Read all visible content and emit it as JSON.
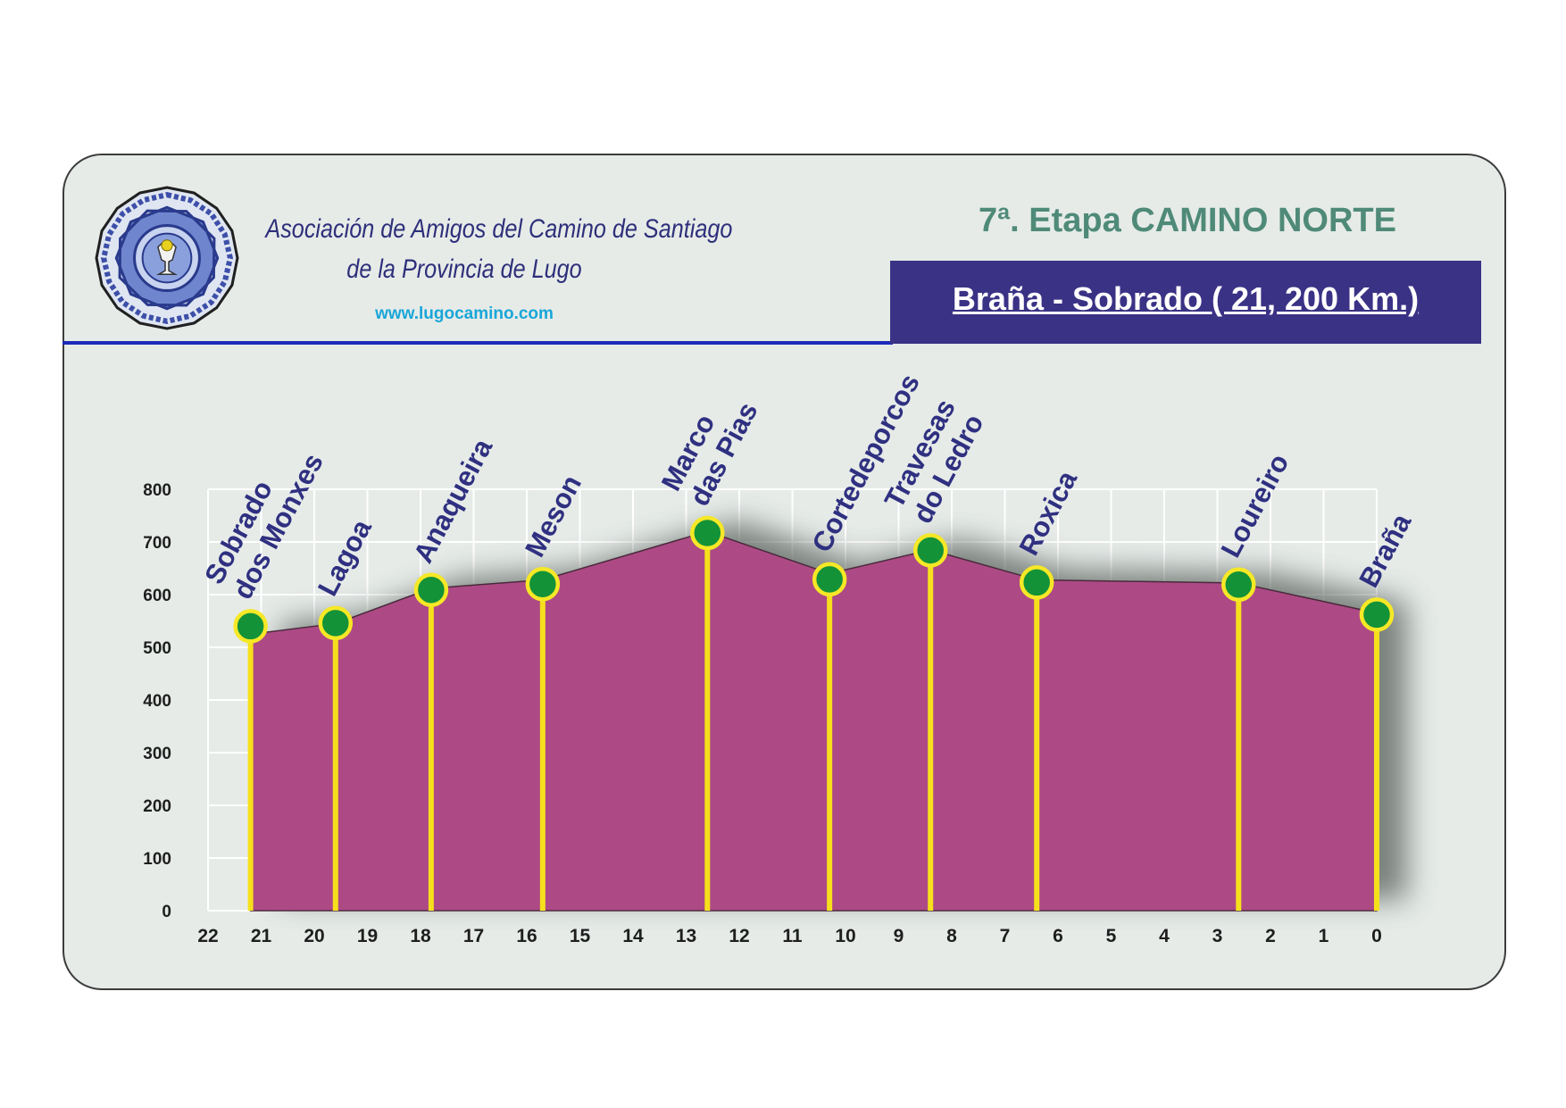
{
  "header": {
    "organization_line1": "Asociación de Amigos del Camino de Santiago",
    "organization_line2": "de la Provincia de Lugo",
    "website": "www.lugocamino.com",
    "stage_title": "7ª. Etapa CAMINO NORTE",
    "route": " Braña - Sobrado ( 21, 200 Km.)"
  },
  "colors": {
    "fill": "#ad4a85",
    "marker_fill": "#139238",
    "marker_ring": "#f6e826",
    "pole": "#f6e01c",
    "label": "#2f3080",
    "header_band": "#3a3285",
    "rule": "#1b2bb8",
    "stage_title": "#4f8a78",
    "website": "#1aa6d8"
  },
  "chart_data": {
    "type": "area",
    "x_ticks": [
      "22",
      "21",
      "20",
      "19",
      "18",
      "17",
      "16",
      "15",
      "14",
      "13",
      "12",
      "11",
      "10",
      "9",
      "8",
      "7",
      "6",
      "5",
      "4",
      "3",
      "2",
      "1",
      "0"
    ],
    "x_reversed": true,
    "xlim": [
      22,
      0
    ],
    "y_ticks": [
      "0",
      "100",
      "200",
      "300",
      "400",
      "500",
      "600",
      "700",
      "800"
    ],
    "ylim": [
      0,
      800
    ],
    "grid": true,
    "profile": [
      {
        "x": 21.2,
        "y": 525
      },
      {
        "x": 19.6,
        "y": 545
      },
      {
        "x": 17.8,
        "y": 612
      },
      {
        "x": 15.7,
        "y": 628
      },
      {
        "x": 12.6,
        "y": 720
      },
      {
        "x": 10.3,
        "y": 640
      },
      {
        "x": 8.4,
        "y": 685
      },
      {
        "x": 6.4,
        "y": 628
      },
      {
        "x": 2.6,
        "y": 622
      },
      {
        "x": 0,
        "y": 565
      }
    ],
    "waypoints": [
      {
        "label_lines": [
          "Sobrado",
          "dos Monxes"
        ],
        "x": 21.2,
        "y": 540
      },
      {
        "label_lines": [
          "Lagoa"
        ],
        "x": 19.6,
        "y": 546
      },
      {
        "label_lines": [
          "Anaqueira"
        ],
        "x": 17.8,
        "y": 609
      },
      {
        "label_lines": [
          "Meson"
        ],
        "x": 15.7,
        "y": 620
      },
      {
        "label_lines": [
          "Marco",
          "das Pias"
        ],
        "x": 12.6,
        "y": 717
      },
      {
        "label_lines": [
          "Cortedeporcos"
        ],
        "x": 10.3,
        "y": 629
      },
      {
        "label_lines": [
          "Travesas",
          "do Ledro"
        ],
        "x": 8.4,
        "y": 684
      },
      {
        "label_lines": [
          "Roxica"
        ],
        "x": 6.4,
        "y": 623
      },
      {
        "label_lines": [
          "Loureiro"
        ],
        "x": 2.6,
        "y": 619
      },
      {
        "label_lines": [
          "Braña"
        ],
        "x": 0,
        "y": 562
      }
    ]
  }
}
